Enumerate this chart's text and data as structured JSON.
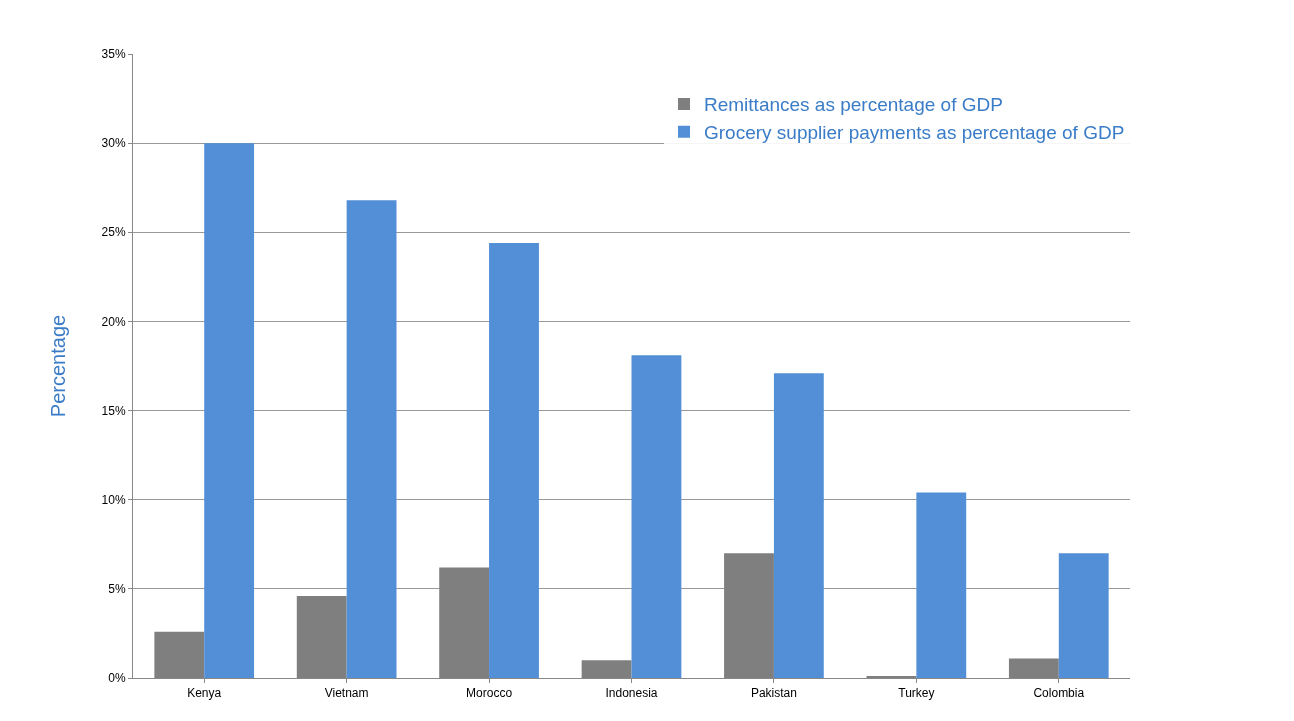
{
  "chart_data": {
    "type": "bar",
    "ylabel": "Percentage",
    "categories": [
      "Kenya",
      "Vietnam",
      "Morocco",
      "Indonesia",
      "Pakistan",
      "Turkey",
      "Colombia"
    ],
    "series": [
      {
        "name": "Remittances as percentage of GDP",
        "color": "#7f7f7f",
        "values": [
          2.6,
          4.6,
          6.2,
          1.0,
          7.0,
          0.1,
          1.1
        ]
      },
      {
        "name": "Grocery supplier payments as percentage of GDP",
        "color": "#528fd6",
        "values": [
          30.0,
          26.8,
          24.4,
          18.1,
          17.1,
          10.4,
          7.0
        ]
      }
    ],
    "ylim": [
      0,
      35
    ],
    "yticks": [
      {
        "value": 0,
        "label": "0%"
      },
      {
        "value": 5,
        "label": "5%"
      },
      {
        "value": 10,
        "label": "10%"
      },
      {
        "value": 15,
        "label": "15%"
      },
      {
        "value": 20,
        "label": "20%"
      },
      {
        "value": 25,
        "label": "25%"
      },
      {
        "value": 30,
        "label": "30%"
      },
      {
        "value": 35,
        "label": "35%"
      }
    ],
    "grid": "y",
    "legend": "top right"
  }
}
